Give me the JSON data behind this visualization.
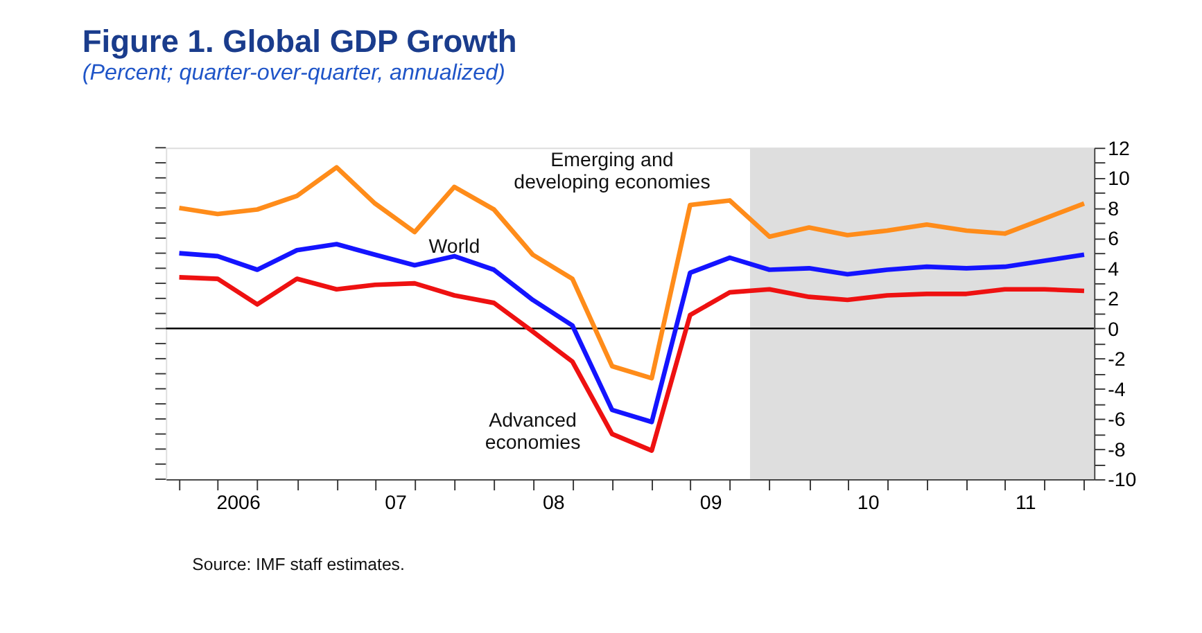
{
  "chart_data": {
    "type": "line",
    "title": "Figure 1.  Global GDP Growth",
    "subtitle": "(Percent; quarter-over-quarter, annualized)",
    "x": [
      "2006-02-15",
      "2006-05-15",
      "2006-08-15",
      "2006-11-15",
      "2007-02-15",
      "2007-05-15",
      "2007-08-15",
      "2007-11-15",
      "2008-02-15",
      "2008-05-15",
      "2008-08-15",
      "2008-11-15",
      "2009-02-15",
      "2009-05-15",
      "2009-08-15",
      "2009-11-15",
      "2010-02-15",
      "2010-05-15",
      "2010-08-15",
      "2010-11-15",
      "2011-02-15",
      "2011-05-15",
      "2011-08-15",
      "2011-11-15"
    ],
    "series": [
      {
        "name": "Emerging and\ndeveloping economies",
        "color": "#ff8c1a",
        "values": [
          8.0,
          7.6,
          7.9,
          8.8,
          10.7,
          8.3,
          6.4,
          9.4,
          7.9,
          4.9,
          3.3,
          -2.5,
          -3.3,
          8.2,
          8.5,
          6.1,
          6.7,
          6.2,
          6.5,
          6.9,
          6.5,
          6.3,
          7.3,
          8.3
        ]
      },
      {
        "name": "World",
        "color": "#1414ff",
        "values": [
          5.0,
          4.8,
          3.9,
          5.2,
          5.6,
          4.9,
          4.2,
          4.8,
          3.9,
          1.9,
          0.2,
          -5.4,
          -6.2,
          3.7,
          4.7,
          3.9,
          4.0,
          3.6,
          3.9,
          4.1,
          4.0,
          4.1,
          4.5,
          4.9
        ]
      },
      {
        "name": "Advanced\neconomies",
        "color": "#ee1111",
        "values": [
          3.4,
          3.3,
          1.6,
          3.3,
          2.6,
          2.9,
          3.0,
          2.2,
          1.7,
          -0.2,
          -2.2,
          -7.0,
          -8.1,
          0.9,
          2.4,
          2.6,
          2.1,
          1.9,
          2.2,
          2.3,
          2.3,
          2.6,
          2.6,
          2.5
        ]
      }
    ],
    "xlim": [
      "2006-01-15",
      "2011-12-08"
    ],
    "xticks": [
      {
        "value": "2006-02-15",
        "label": null
      },
      {
        "value": "2006-05-15",
        "label": null
      },
      {
        "value": "2006-07-01",
        "label": "2006"
      },
      {
        "value": "2006-08-15",
        "label": null
      },
      {
        "value": "2006-11-15",
        "label": null
      },
      {
        "value": "2007-02-15",
        "label": null
      },
      {
        "value": "2007-05-15",
        "label": null
      },
      {
        "value": "2007-07-01",
        "label": "07"
      },
      {
        "value": "2007-08-15",
        "label": null
      },
      {
        "value": "2007-11-15",
        "label": null
      },
      {
        "value": "2008-02-15",
        "label": null
      },
      {
        "value": "2008-05-15",
        "label": null
      },
      {
        "value": "2008-07-01",
        "label": "08"
      },
      {
        "value": "2008-08-15",
        "label": null
      },
      {
        "value": "2008-11-15",
        "label": null
      },
      {
        "value": "2009-02-15",
        "label": null
      },
      {
        "value": "2009-05-15",
        "label": null
      },
      {
        "value": "2009-07-01",
        "label": "09"
      },
      {
        "value": "2009-08-15",
        "label": null
      },
      {
        "value": "2009-11-15",
        "label": null
      },
      {
        "value": "2010-02-15",
        "label": null
      },
      {
        "value": "2010-05-15",
        "label": null
      },
      {
        "value": "2010-07-01",
        "label": "10"
      },
      {
        "value": "2010-08-15",
        "label": null
      },
      {
        "value": "2010-11-15",
        "label": null
      },
      {
        "value": "2011-02-15",
        "label": null
      },
      {
        "value": "2011-05-15",
        "label": null
      },
      {
        "value": "2011-07-01",
        "label": "11"
      },
      {
        "value": "2011-08-15",
        "label": null
      },
      {
        "value": "2011-11-15",
        "label": null
      }
    ],
    "ylim": [
      -10,
      12
    ],
    "yticks": [
      -10,
      {
        "value": -9,
        "label": null
      },
      -8,
      {
        "value": -7,
        "label": null
      },
      -6,
      {
        "value": -5,
        "label": null
      },
      -4,
      {
        "value": -3,
        "label": null
      },
      -2,
      {
        "value": -1,
        "label": null
      },
      0,
      {
        "value": 1,
        "label": null
      },
      2,
      {
        "value": 3,
        "label": null
      },
      4,
      {
        "value": 5,
        "label": null
      },
      6,
      {
        "value": 7,
        "label": null
      },
      8,
      {
        "value": 9,
        "label": null
      },
      10,
      {
        "value": 11,
        "label": null
      },
      12
    ],
    "ref_lines": [
      {
        "axis": "y",
        "value": 0,
        "color": "#000000"
      }
    ],
    "bands": [
      {
        "axis": "x",
        "from": "2009-10-01",
        "to": "2011-12-08",
        "color": "#dedede"
      }
    ],
    "grid": false,
    "marker": "none",
    "line_style": "solid",
    "annotations": [
      "Source: IMF staff estimates."
    ]
  }
}
